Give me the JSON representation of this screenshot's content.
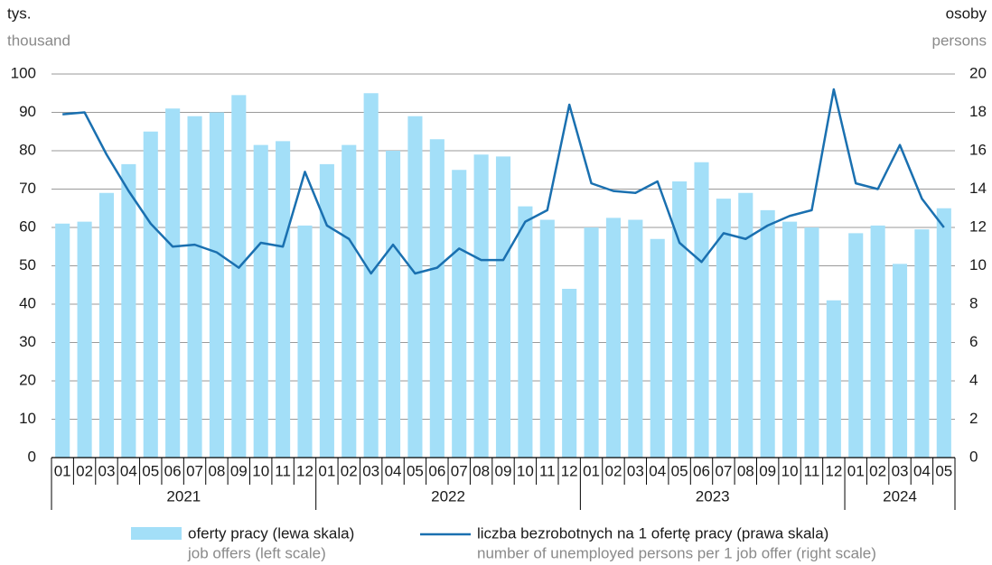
{
  "chart_data": {
    "type": "combo",
    "ylabel": "tys.",
    "ylabel_en": "thousand",
    "y2label": "osoby",
    "y2label_en": "persons",
    "categories": [
      "01",
      "02",
      "03",
      "04",
      "05",
      "06",
      "07",
      "08",
      "09",
      "10",
      "11",
      "12",
      "01",
      "02",
      "03",
      "04",
      "05",
      "06",
      "07",
      "08",
      "09",
      "10",
      "11",
      "12",
      "01",
      "02",
      "03",
      "04",
      "05",
      "06",
      "07",
      "08",
      "09",
      "10",
      "11",
      "12",
      "01",
      "02",
      "03",
      "04",
      "05"
    ],
    "groups": [
      {
        "label": "2021",
        "count": 12
      },
      {
        "label": "2022",
        "count": 12
      },
      {
        "label": "2023",
        "count": 12
      },
      {
        "label": "2024",
        "count": 5
      }
    ],
    "series": [
      {
        "name": "oferty pracy (lewa skala)",
        "name_en": "job offers (left scale)",
        "type": "bar",
        "color": "#a3dff8",
        "values": [
          61,
          61.5,
          69,
          76.5,
          85,
          91,
          89,
          90,
          94.5,
          81.5,
          82.5,
          60.5,
          76.5,
          81.5,
          95,
          80,
          89,
          83,
          75,
          79,
          78.5,
          65.5,
          62,
          44,
          60,
          62.5,
          62,
          57,
          72,
          77,
          67.5,
          69,
          64.5,
          61.5,
          60,
          41,
          58.5,
          60.5,
          50.5,
          59.5,
          65
        ]
      },
      {
        "name": "liczba bezrobotnych na 1 ofertę pracy (prawa skala)",
        "name_en": "number of unemployed persons per 1 job offer (right scale)",
        "type": "line",
        "axis": "y2",
        "color": "#1a70b0",
        "values": [
          17.9,
          18.0,
          15.8,
          13.9,
          12.2,
          11.0,
          11.1,
          10.7,
          9.9,
          11.2,
          11.0,
          14.9,
          12.1,
          11.4,
          9.6,
          11.1,
          9.6,
          9.9,
          10.9,
          10.3,
          10.3,
          12.3,
          12.9,
          18.4,
          14.3,
          13.9,
          13.8,
          14.4,
          11.2,
          10.2,
          11.7,
          11.4,
          12.1,
          12.6,
          12.9,
          19.2,
          14.3,
          14.0,
          16.3,
          13.5,
          12.0
        ]
      }
    ],
    "ylim": [
      0,
      100
    ],
    "yticks": [
      0,
      10,
      20,
      30,
      40,
      50,
      60,
      70,
      80,
      90,
      100
    ],
    "y2lim": [
      0,
      20
    ],
    "y2ticks": [
      0,
      2,
      4,
      6,
      8,
      10,
      12,
      14,
      16,
      18,
      20
    ],
    "grid": true
  }
}
